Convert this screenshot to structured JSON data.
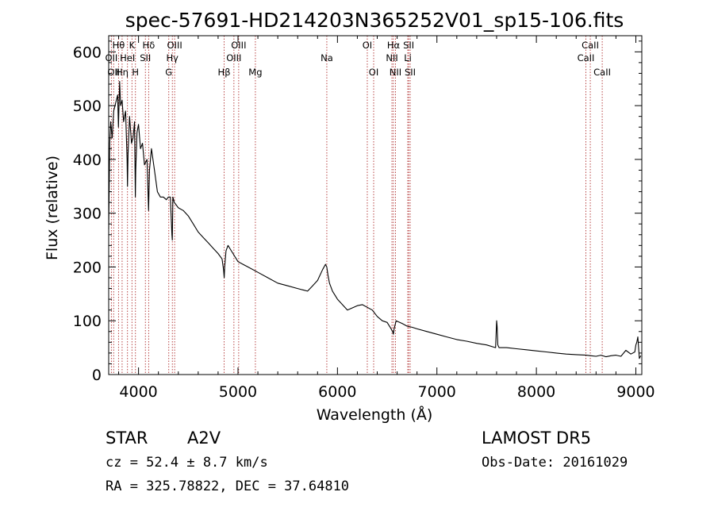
{
  "chart_data": {
    "type": "line",
    "title": "spec-57691-HD214203N365252V01_sp15-106.fits",
    "xlabel": "Wavelength (Å)",
    "ylabel": "Flux (relative)",
    "xlim": [
      3700,
      9060
    ],
    "ylim": [
      0,
      630
    ],
    "x_ticks": [
      "4000",
      "5000",
      "6000",
      "7000",
      "8000",
      "9000"
    ],
    "y_ticks": [
      "0",
      "100",
      "200",
      "300",
      "400",
      "500",
      "600"
    ],
    "grid": false,
    "series": [
      {
        "x": [
          3700,
          3710,
          3720,
          3735,
          3750,
          3770,
          3790,
          3798,
          3810,
          3820,
          3835,
          3850,
          3870,
          3885,
          3889,
          3895,
          3910,
          3930,
          3945,
          3960,
          3968,
          3972,
          3985,
          4000,
          4020,
          4040,
          4060,
          4085,
          4101,
          4110,
          4130,
          4160,
          4190,
          4220,
          4250,
          4280,
          4300,
          4320,
          4336,
          4340,
          4345,
          4360,
          4380,
          4400,
          4450,
          4500,
          4550,
          4600,
          4650,
          4700,
          4750,
          4800,
          4840,
          4855,
          4861,
          4866,
          4880,
          4900,
          4950,
          5000,
          5050,
          5100,
          5200,
          5300,
          5400,
          5500,
          5600,
          5700,
          5750,
          5800,
          5850,
          5880,
          5893,
          5905,
          5920,
          5950,
          6000,
          6100,
          6200,
          6250,
          6300,
          6350,
          6400,
          6450,
          6500,
          6530,
          6555,
          6563,
          6570,
          6590,
          6650,
          6700,
          6750,
          6800,
          6900,
          7000,
          7100,
          7200,
          7300,
          7400,
          7500,
          7590,
          7600,
          7605,
          7612,
          7625,
          7700,
          7800,
          7900,
          8000,
          8100,
          8200,
          8300,
          8400,
          8500,
          8550,
          8600,
          8650,
          8700,
          8750,
          8800,
          8850,
          8900,
          8950,
          8990,
          9000,
          9010,
          9020,
          9035,
          9050
        ],
        "y": [
          270,
          430,
          470,
          440,
          490,
          505,
          520,
          460,
          545,
          500,
          510,
          470,
          490,
          400,
          350,
          410,
          480,
          430,
          440,
          470,
          330,
          380,
          450,
          465,
          420,
          430,
          390,
          400,
          305,
          380,
          420,
          380,
          340,
          330,
          330,
          325,
          330,
          330,
          260,
          250,
          330,
          320,
          315,
          310,
          305,
          295,
          280,
          265,
          255,
          245,
          235,
          225,
          215,
          195,
          180,
          200,
          230,
          240,
          225,
          210,
          205,
          200,
          190,
          180,
          170,
          165,
          160,
          155,
          165,
          175,
          195,
          205,
          200,
          185,
          170,
          155,
          140,
          120,
          128,
          130,
          125,
          120,
          108,
          100,
          97,
          88,
          80,
          75,
          85,
          100,
          95,
          90,
          88,
          85,
          80,
          75,
          70,
          65,
          62,
          58,
          55,
          50,
          100,
          90,
          55,
          50,
          50,
          48,
          46,
          44,
          42,
          40,
          38,
          37,
          36,
          35,
          34,
          36,
          33,
          35,
          36,
          34,
          45,
          38,
          42,
          55,
          60,
          70,
          30,
          35
        ],
        "color": "#000000"
      }
    ],
    "line_markers": [
      {
        "x": 3727,
        "label": "OII",
        "row": 1
      },
      {
        "x": 3750,
        "label": "OII",
        "row": 2
      },
      {
        "x": 3799,
        "label": "Hθ",
        "row": 0
      },
      {
        "x": 3835,
        "label": "Hη",
        "row": 2
      },
      {
        "x": 3889,
        "label": "HeI",
        "row": 1
      },
      {
        "x": 3934,
        "label": "K",
        "row": 0
      },
      {
        "x": 3969,
        "label": "H",
        "row": 2
      },
      {
        "x": 4069,
        "label": "SII",
        "row": 1
      },
      {
        "x": 4102,
        "label": "Hδ",
        "row": 0
      },
      {
        "x": 4304,
        "label": "G",
        "row": 2
      },
      {
        "x": 4340,
        "label": "Hγ",
        "row": 1
      },
      {
        "x": 4363,
        "label": "OIII",
        "row": 0
      },
      {
        "x": 4861,
        "label": "Hβ",
        "row": 2
      },
      {
        "x": 4959,
        "label": "OIII",
        "row": 1
      },
      {
        "x": 5007,
        "label": "OIII",
        "row": 0
      },
      {
        "x": 5175,
        "label": "Mg",
        "row": 2
      },
      {
        "x": 5893,
        "label": "Na",
        "row": 1
      },
      {
        "x": 6300,
        "label": "OI",
        "row": 0
      },
      {
        "x": 6364,
        "label": "OI",
        "row": 2
      },
      {
        "x": 6548,
        "label": "NII",
        "row": 1
      },
      {
        "x": 6563,
        "label": "Hα",
        "row": 0
      },
      {
        "x": 6583,
        "label": "NII",
        "row": 2
      },
      {
        "x": 6707,
        "label": "Li",
        "row": 1
      },
      {
        "x": 6716,
        "label": "SII",
        "row": 0
      },
      {
        "x": 6731,
        "label": "SII",
        "row": 2
      },
      {
        "x": 8498,
        "label": "CaII",
        "row": 1
      },
      {
        "x": 8542,
        "label": "CaII",
        "row": 0
      },
      {
        "x": 8662,
        "label": "CaII",
        "row": 2
      }
    ],
    "marker_color": "#b03030"
  },
  "info": {
    "object_class": "STAR",
    "subclass": "A2V",
    "survey": "LAMOST DR5",
    "redshift_text": "cz = 52.4 ± 8.7 km/s",
    "obs_date": "Obs-Date: 20161029",
    "coords": "RA = 325.78822, DEC =  37.64810"
  }
}
